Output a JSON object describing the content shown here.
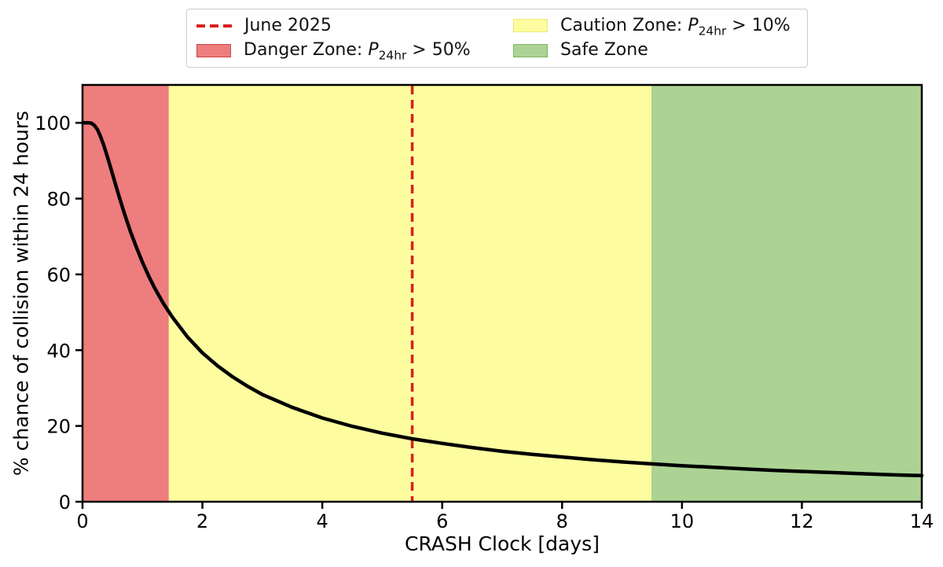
{
  "figure": {
    "background": "#ffffff"
  },
  "chart_data": {
    "type": "line",
    "title": "",
    "xlabel": "CRASH Clock [days]",
    "ylabel": "% chance of collision within 24 hours",
    "xlim": [
      0,
      14
    ],
    "ylim": [
      0,
      110
    ],
    "x_ticks": [
      0,
      2,
      4,
      6,
      8,
      10,
      12,
      14
    ],
    "y_ticks": [
      0,
      20,
      40,
      60,
      80,
      100
    ],
    "grid": false,
    "legend_position": "top-outside",
    "series": [
      {
        "name": "% chance of collision within 24 hours",
        "color": "#000000",
        "x": [
          0,
          0.1,
          0.15,
          0.2,
          0.25,
          0.3,
          0.35,
          0.4,
          0.45,
          0.5,
          0.6,
          0.7,
          0.8,
          0.9,
          1.0,
          1.1,
          1.2,
          1.35,
          1.5,
          1.75,
          2.0,
          2.25,
          2.5,
          2.75,
          3.0,
          3.5,
          4.0,
          4.5,
          5.0,
          5.5,
          6.0,
          6.5,
          7.0,
          7.5,
          8.0,
          8.5,
          9.0,
          9.5,
          10.0,
          10.5,
          11.0,
          11.5,
          12.0,
          12.5,
          13.0,
          13.5,
          14.0
        ],
        "y": [
          100,
          100,
          99.9,
          99.3,
          98.2,
          96.4,
          94.3,
          91.8,
          89.2,
          86.5,
          81.1,
          76.0,
          71.3,
          67.1,
          63.2,
          59.7,
          56.5,
          52.3,
          48.7,
          43.5,
          39.3,
          35.9,
          33.0,
          30.5,
          28.3,
          24.9,
          22.1,
          19.9,
          18.1,
          16.6,
          15.4,
          14.3,
          13.3,
          12.5,
          11.8,
          11.1,
          10.5,
          10.0,
          9.5,
          9.1,
          8.7,
          8.3,
          8.0,
          7.7,
          7.4,
          7.1,
          6.9
        ]
      }
    ],
    "zones": [
      {
        "name": "danger",
        "label": "Danger Zone",
        "from": 0,
        "to": 1.44,
        "color": "#ee7d7d"
      },
      {
        "name": "caution",
        "label": "Caution Zone",
        "from": 1.44,
        "to": 9.49,
        "color": "#fdfda0"
      },
      {
        "name": "safe",
        "label": "Safe Zone",
        "from": 9.49,
        "to": 14,
        "color": "#acd394"
      }
    ],
    "vline": {
      "x": 5.5,
      "label": "June 2025",
      "color": "#dc1e1e",
      "style": "dashed"
    }
  },
  "legend": {
    "items": [
      {
        "type": "dash",
        "color": "#dc1e1e",
        "border": "#dc1e1e",
        "prefix": "June 2025",
        "symbol": "",
        "sub": "",
        "suffix": ""
      },
      {
        "type": "patch",
        "color": "#ee7d7d",
        "border": "#c64a4a",
        "prefix": "Danger Zone: ",
        "symbol": "P",
        "sub": "24hr",
        "suffix": " > 50%"
      },
      {
        "type": "patch",
        "color": "#fdfda0",
        "border": "#e8e878",
        "prefix": "Caution Zone: ",
        "symbol": "P",
        "sub": "24hr",
        "suffix": " > 10%"
      },
      {
        "type": "patch",
        "color": "#acd394",
        "border": "#7fb463",
        "prefix": "Safe Zone",
        "symbol": "",
        "sub": "",
        "suffix": ""
      }
    ]
  }
}
